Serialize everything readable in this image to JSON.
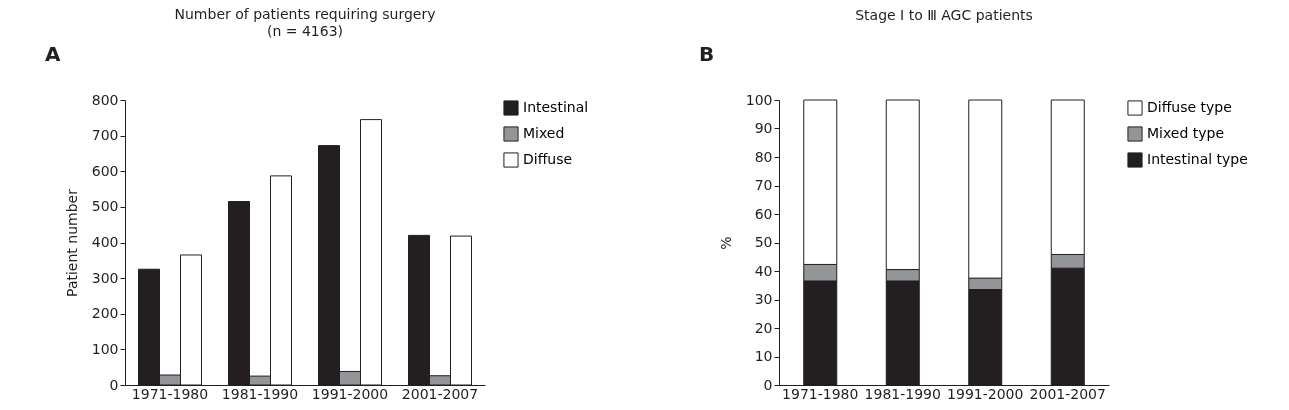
{
  "chart_data": [
    {
      "type": "bar",
      "title": "Number of patients requiring surgery",
      "subtitle": "(n = 4163)",
      "ylabel": "Patient number",
      "annotations": [
        "A"
      ],
      "categories": [
        "1971-1980",
        "1981-1990",
        "1991-2000",
        "2001-2007"
      ],
      "series": [
        {
          "name": "Intestinal",
          "color": "#231f20",
          "values": [
            325,
            515,
            672,
            420
          ]
        },
        {
          "name": "Mixed",
          "color": "#939598",
          "values": [
            28,
            25,
            38,
            26
          ]
        },
        {
          "name": "Diffuse",
          "color": "#ffffff",
          "values": [
            365,
            587,
            745,
            418
          ]
        }
      ],
      "ylim": [
        0,
        800
      ],
      "yticks": [
        0,
        100,
        200,
        300,
        400,
        500,
        600,
        700,
        800
      ],
      "grid": false,
      "legend": "top right"
    },
    {
      "type": "bar",
      "title": "Stage Ⅰ to Ⅲ AGC patients",
      "ylabel": "%",
      "annotations": [
        "B"
      ],
      "stacked": true,
      "categories": [
        "1971-1980",
        "1981-1990",
        "1991-2000",
        "2001-2007"
      ],
      "series": [
        {
          "name": "Intestinal type",
          "color": "#231f20",
          "values": [
            36.5,
            36.5,
            33.5,
            41
          ]
        },
        {
          "name": "Mixed type",
          "color": "#939598",
          "values": [
            5.8,
            4,
            4,
            4.8
          ]
        },
        {
          "name": "Diffuse type",
          "color": "#ffffff",
          "values": [
            57.7,
            59.5,
            62.5,
            54.2
          ]
        }
      ],
      "ylim": [
        0,
        100
      ],
      "yticks": [
        0,
        10,
        20,
        30,
        40,
        50,
        60,
        70,
        80,
        90,
        100
      ],
      "grid": false,
      "legend": "top right"
    }
  ]
}
